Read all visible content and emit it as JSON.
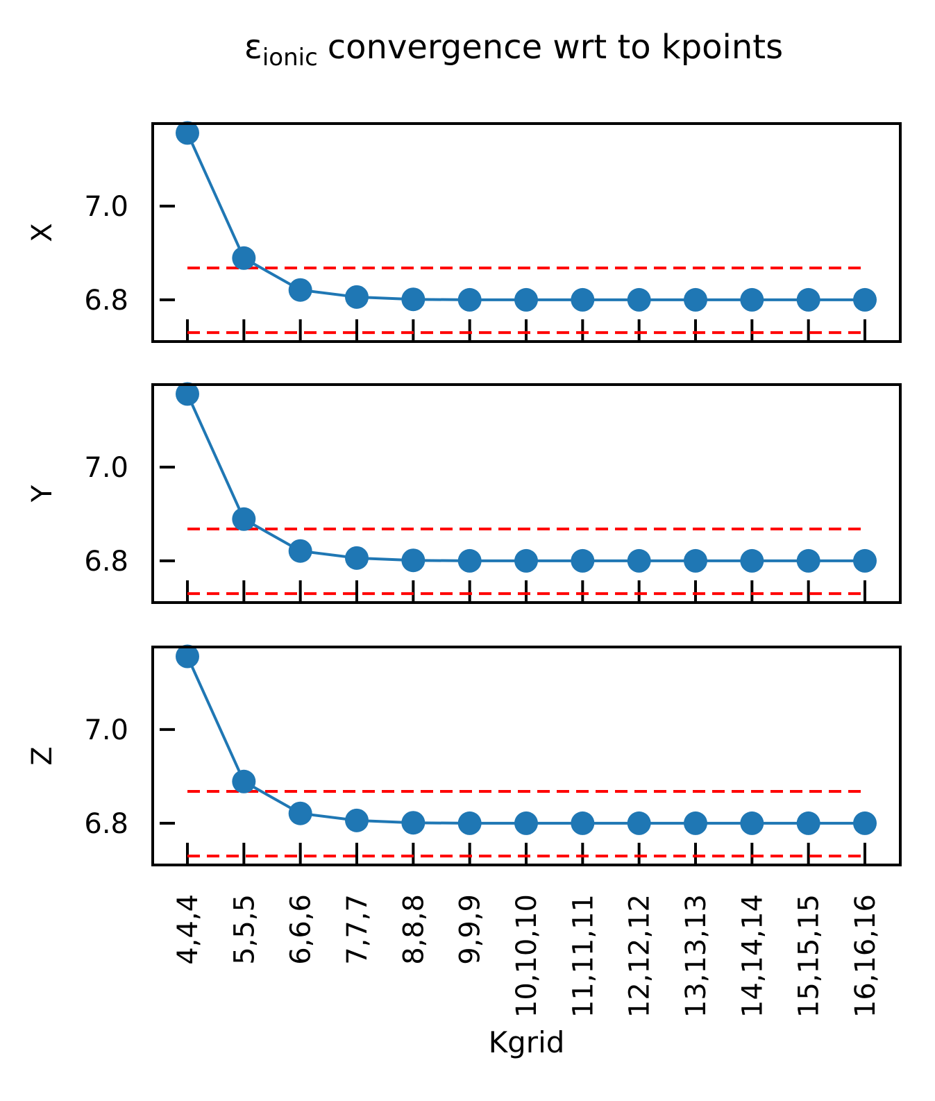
{
  "figure_title": {
    "symbol": "ε",
    "subscript": "ionic",
    "text": "convergence wrt to kpoints"
  },
  "chart_data": [
    {
      "type": "line",
      "ylabel": "X",
      "values": [
        7.156,
        6.889,
        6.821,
        6.806,
        6.801,
        6.8,
        6.8,
        6.8,
        6.8,
        6.8,
        6.8,
        6.8,
        6.8
      ],
      "color": "#1f77b4",
      "ylim": [
        6.711,
        7.176
      ],
      "yticks": [
        6.8,
        {
          "value": 7,
          "label": "7.0"
        }
      ],
      "reference_lines": [
        6.868,
        6.73
      ],
      "reference_color": "#ff0000"
    },
    {
      "type": "line",
      "ylabel": "Y",
      "values": [
        7.156,
        6.889,
        6.821,
        6.806,
        6.801,
        6.8,
        6.8,
        6.8,
        6.8,
        6.8,
        6.8,
        6.8,
        6.8
      ],
      "color": "#1f77b4",
      "ylim": [
        6.711,
        7.176
      ],
      "yticks": [
        6.8,
        {
          "value": 7,
          "label": "7.0"
        }
      ],
      "reference_lines": [
        6.868,
        6.73
      ],
      "reference_color": "#ff0000"
    },
    {
      "type": "line",
      "ylabel": "Z",
      "xlabel": "Kgrid",
      "categories": [
        "4,4,4",
        "5,5,5",
        "6,6,6",
        "7,7,7",
        "8,8,8",
        "9,9,9",
        "10,10,10",
        "11,11,11",
        "12,12,12",
        "13,13,13",
        "14,14,14",
        "15,15,15",
        "16,16,16"
      ],
      "values": [
        7.156,
        6.889,
        6.821,
        6.806,
        6.801,
        6.8,
        6.8,
        6.8,
        6.8,
        6.8,
        6.8,
        6.8,
        6.8
      ],
      "color": "#1f77b4",
      "ylim": [
        6.711,
        7.176
      ],
      "yticks": [
        6.8,
        {
          "value": 7,
          "label": "7.0"
        }
      ],
      "reference_lines": [
        6.868,
        6.73
      ],
      "reference_color": "#ff0000"
    }
  ]
}
